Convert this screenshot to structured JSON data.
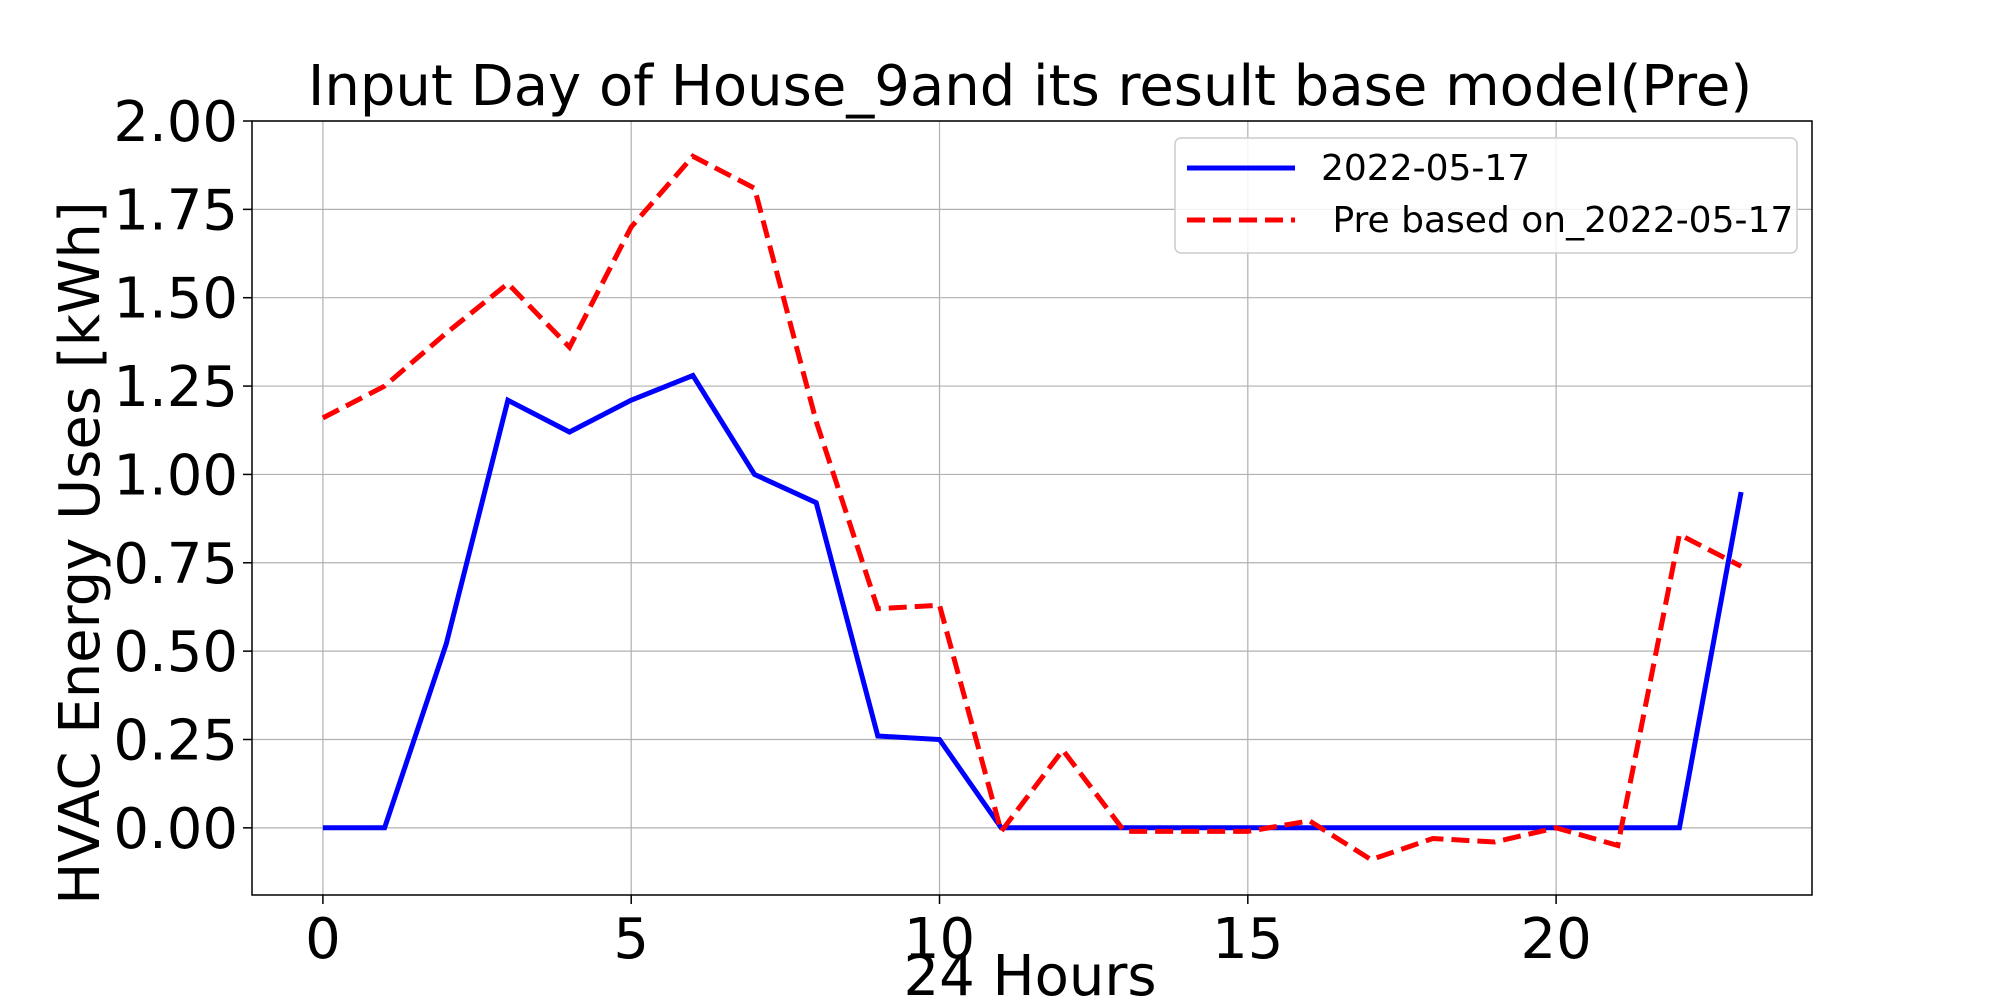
{
  "chart_data": {
    "type": "line",
    "title": "Input Day of House_9and its result base model(Pre)",
    "xlabel": "24 Hours",
    "ylabel": "HVAC Energy Uses [kWh]",
    "xlim": [
      -1.15,
      24.15
    ],
    "ylim": [
      -0.19,
      2.0
    ],
    "xticks": [
      0,
      5,
      10,
      15,
      20
    ],
    "xtick_labels": [
      "0",
      "5",
      "10",
      "15",
      "20"
    ],
    "yticks": [
      0.0,
      0.25,
      0.5,
      0.75,
      1.0,
      1.25,
      1.5,
      1.75,
      2.0
    ],
    "ytick_labels": [
      "0.00",
      "0.25",
      "0.50",
      "0.75",
      "1.00",
      "1.25",
      "1.50",
      "1.75",
      "2.00"
    ],
    "grid": true,
    "legend_position": "top-right",
    "x": [
      0,
      1,
      2,
      3,
      4,
      5,
      6,
      7,
      8,
      9,
      10,
      11,
      12,
      13,
      14,
      15,
      16,
      17,
      18,
      19,
      20,
      21,
      22,
      23
    ],
    "series": [
      {
        "name": "2022-05-17",
        "color": "#0000ff",
        "style": "solid",
        "values": [
          0.0,
          0.0,
          0.52,
          1.21,
          1.12,
          1.21,
          1.28,
          1.0,
          0.92,
          0.26,
          0.25,
          0.0,
          0.0,
          0.0,
          0.0,
          0.0,
          0.0,
          0.0,
          0.0,
          0.0,
          0.0,
          0.0,
          0.0,
          0.95
        ]
      },
      {
        "name": " Pre based on_2022-05-17",
        "color": "#ff0000",
        "style": "dashed",
        "values": [
          1.16,
          1.25,
          1.4,
          1.54,
          1.36,
          1.7,
          1.9,
          1.81,
          1.15,
          0.62,
          0.63,
          -0.01,
          0.22,
          -0.01,
          -0.01,
          -0.01,
          0.02,
          -0.09,
          -0.03,
          -0.04,
          0.0,
          -0.05,
          0.83,
          0.74
        ]
      }
    ]
  }
}
